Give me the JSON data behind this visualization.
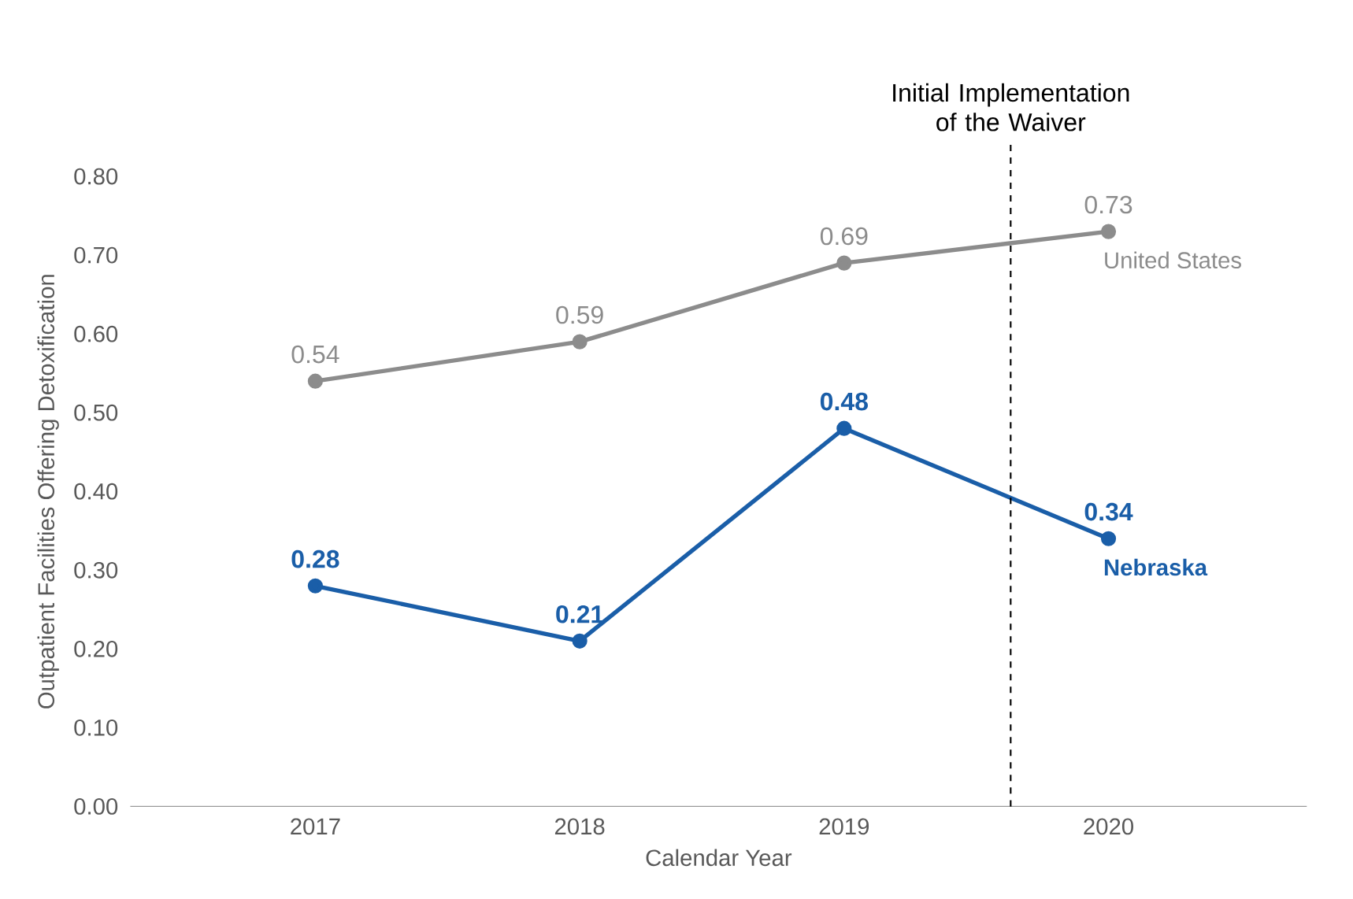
{
  "chart_data": {
    "type": "line",
    "xlabel": "Calendar Year",
    "ylabel": "Outpatient Facilities Offering Detoxification",
    "x": [
      2017,
      2018,
      2019,
      2020
    ],
    "xlim": [
      2016.3,
      2020.75
    ],
    "xticks": [
      2017,
      2018,
      2019,
      2020
    ],
    "ylim": [
      0,
      0.8
    ],
    "yticks": [
      {
        "value": 0,
        "label": "0.00"
      },
      {
        "value": 0.1,
        "label": "0.10"
      },
      {
        "value": 0.2,
        "label": "0.20"
      },
      {
        "value": 0.3,
        "label": "0.30"
      },
      {
        "value": 0.4,
        "label": "0.40"
      },
      {
        "value": 0.5,
        "label": "0.50"
      },
      {
        "value": 0.6,
        "label": "0.60"
      },
      {
        "value": 0.7,
        "label": "0.70"
      },
      {
        "value": 0.8,
        "label": "0.80"
      }
    ],
    "series": [
      {
        "name": "United States",
        "color": "#8c8c8c",
        "values": [
          0.54,
          0.59,
          0.69,
          0.73
        ]
      },
      {
        "name": "Nebraska",
        "color": "#1a5ea8",
        "values": [
          0.28,
          0.21,
          0.48,
          0.34
        ]
      }
    ],
    "ref_lines": [
      {
        "axis": "x",
        "value": 2019.63,
        "label": "Initial Implementation of the Waiver",
        "color": "#000000",
        "line_style": "dashed"
      }
    ],
    "data_labels": true,
    "grid": false,
    "legend": false,
    "marker": "circle",
    "line_style": "solid"
  }
}
